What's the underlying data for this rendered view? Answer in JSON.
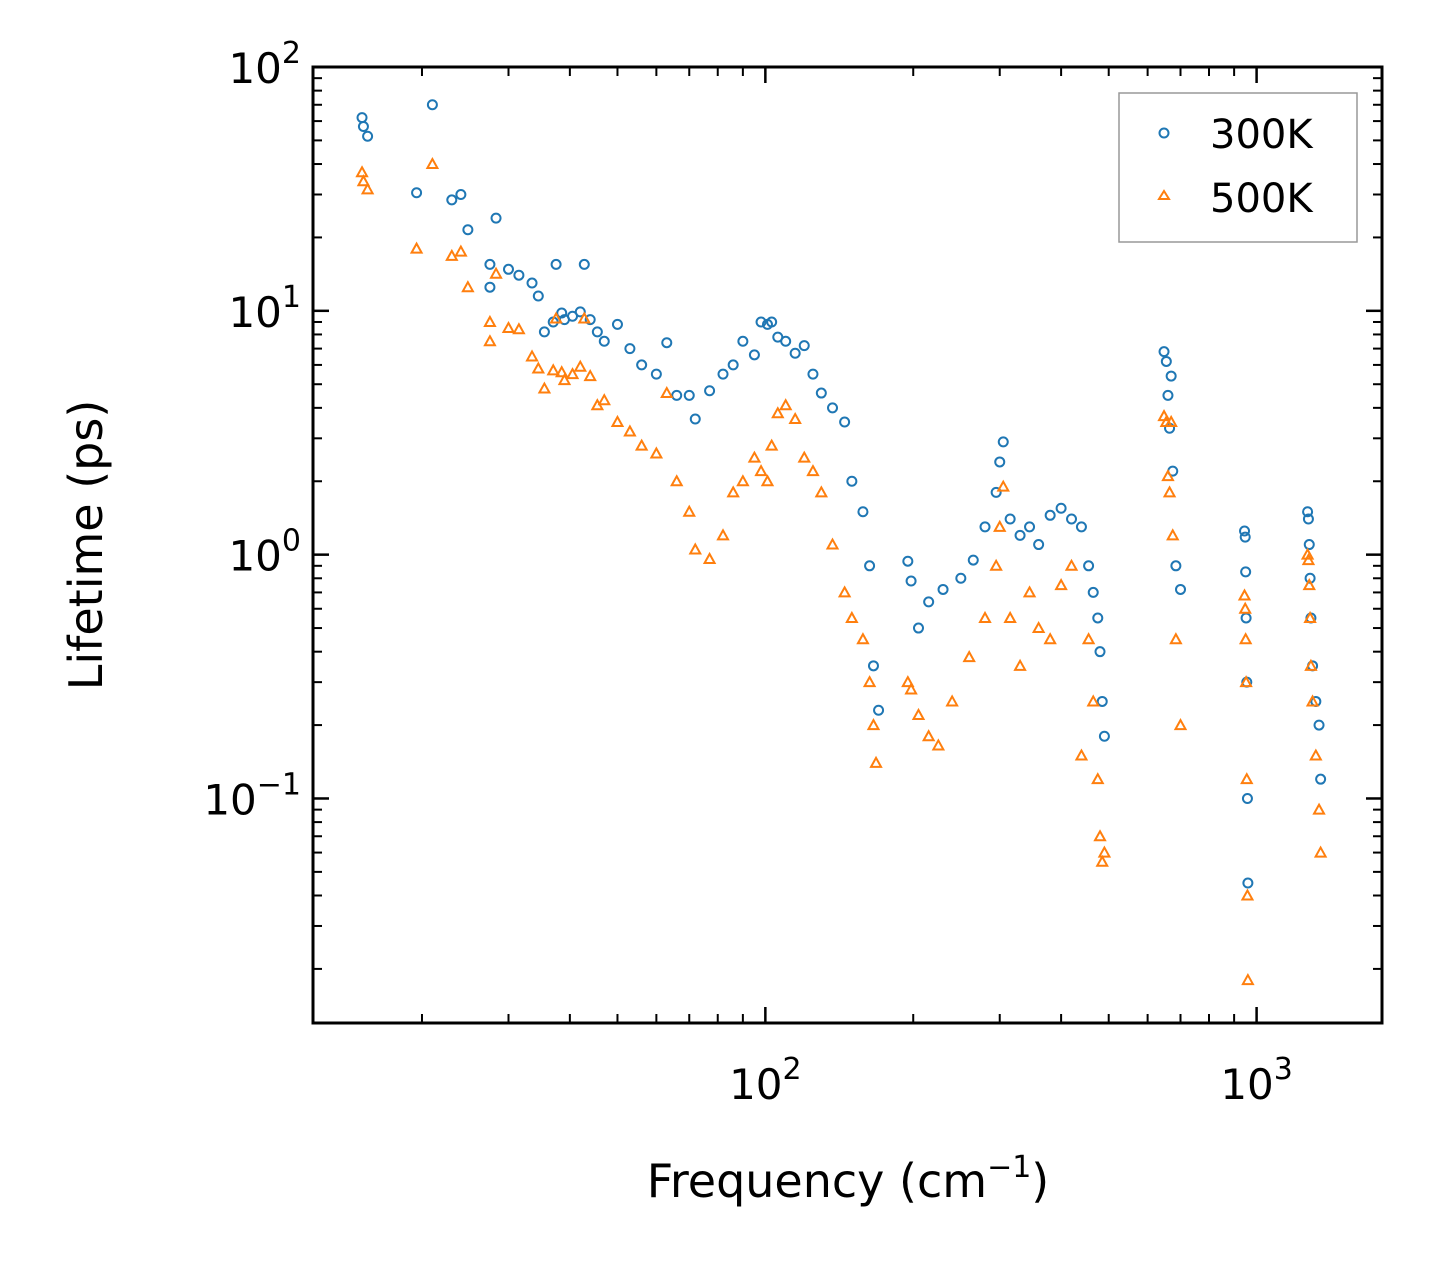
{
  "chart_data": {
    "type": "scatter",
    "xscale": "log",
    "yscale": "log",
    "xlim": [
      12,
      1800
    ],
    "ylim": [
      0.012,
      100
    ],
    "xlabel": "Frequency (cm",
    "xlabel_sup": "−1",
    "xlabel_end": ")",
    "ylabel": "Lifetime (ps)",
    "legend_position": "top-right",
    "x_ticks": [
      {
        "value": 100,
        "base": "10",
        "exp": "2"
      },
      {
        "value": 1000,
        "base": "10",
        "exp": "3"
      }
    ],
    "y_ticks": [
      {
        "value": 0.1,
        "base": "10",
        "exp": "−1"
      },
      {
        "value": 1,
        "base": "10",
        "exp": "0"
      },
      {
        "value": 10,
        "base": "10",
        "exp": "1"
      },
      {
        "value": 100,
        "base": "10",
        "exp": "2"
      }
    ],
    "series": [
      {
        "name": "300K",
        "marker": "circle",
        "color": "#1f77b4",
        "points": [
          [
            15.1,
            62
          ],
          [
            15.2,
            57
          ],
          [
            15.5,
            52
          ],
          [
            19.5,
            30.5
          ],
          [
            21,
            70
          ],
          [
            23,
            28.5
          ],
          [
            24,
            30
          ],
          [
            24.8,
            21.5
          ],
          [
            27.5,
            15.5
          ],
          [
            27.5,
            12.5
          ],
          [
            28.3,
            24
          ],
          [
            30,
            14.8
          ],
          [
            31.5,
            14
          ],
          [
            33.5,
            13
          ],
          [
            34.5,
            11.5
          ],
          [
            35.5,
            8.2
          ],
          [
            37,
            9
          ],
          [
            37.5,
            15.5
          ],
          [
            38.5,
            9.8
          ],
          [
            39,
            9.2
          ],
          [
            40.5,
            9.5
          ],
          [
            42,
            9.9
          ],
          [
            42.8,
            15.5
          ],
          [
            44,
            9.2
          ],
          [
            45.5,
            8.2
          ],
          [
            47,
            7.5
          ],
          [
            50,
            8.8
          ],
          [
            53,
            7
          ],
          [
            56,
            6
          ],
          [
            60,
            5.5
          ],
          [
            63,
            7.4
          ],
          [
            66,
            4.5
          ],
          [
            70,
            4.5
          ],
          [
            72,
            3.6
          ],
          [
            77,
            4.7
          ],
          [
            82,
            5.5
          ],
          [
            86,
            6
          ],
          [
            90,
            7.5
          ],
          [
            95,
            6.6
          ],
          [
            98,
            9
          ],
          [
            101,
            8.8
          ],
          [
            103,
            9
          ],
          [
            106,
            7.8
          ],
          [
            110,
            7.5
          ],
          [
            115,
            6.7
          ],
          [
            120,
            7.2
          ],
          [
            125,
            5.5
          ],
          [
            130,
            4.6
          ],
          [
            137,
            4
          ],
          [
            145,
            3.5
          ],
          [
            150,
            2
          ],
          [
            158,
            1.5
          ],
          [
            163,
            0.9
          ],
          [
            166,
            0.35
          ],
          [
            170,
            0.23
          ],
          [
            195,
            0.94
          ],
          [
            198,
            0.78
          ],
          [
            205,
            0.5
          ],
          [
            215,
            0.64
          ],
          [
            230,
            0.72
          ],
          [
            250,
            0.8
          ],
          [
            265,
            0.95
          ],
          [
            280,
            1.3
          ],
          [
            295,
            1.8
          ],
          [
            300,
            2.4
          ],
          [
            305,
            2.9
          ],
          [
            315,
            1.4
          ],
          [
            330,
            1.2
          ],
          [
            345,
            1.3
          ],
          [
            360,
            1.1
          ],
          [
            380,
            1.45
          ],
          [
            400,
            1.55
          ],
          [
            420,
            1.4
          ],
          [
            440,
            1.3
          ],
          [
            455,
            0.9
          ],
          [
            465,
            0.7
          ],
          [
            475,
            0.55
          ],
          [
            480,
            0.4
          ],
          [
            485,
            0.25
          ],
          [
            490,
            0.18
          ],
          [
            648,
            6.8
          ],
          [
            655,
            6.2
          ],
          [
            660,
            4.5
          ],
          [
            665,
            3.3
          ],
          [
            670,
            5.4
          ],
          [
            675,
            2.2
          ],
          [
            685,
            0.9
          ],
          [
            700,
            0.72
          ],
          [
            945,
            1.25
          ],
          [
            948,
            1.18
          ],
          [
            950,
            0.85
          ],
          [
            952,
            0.55
          ],
          [
            955,
            0.3
          ],
          [
            958,
            0.1
          ],
          [
            960,
            0.045
          ],
          [
            1270,
            1.5
          ],
          [
            1275,
            1.4
          ],
          [
            1280,
            1.1
          ],
          [
            1285,
            0.8
          ],
          [
            1290,
            0.55
          ],
          [
            1300,
            0.35
          ],
          [
            1320,
            0.25
          ],
          [
            1340,
            0.2
          ],
          [
            1350,
            0.12
          ]
        ]
      },
      {
        "name": "500K",
        "marker": "triangle",
        "color": "#ff7f0e",
        "points": [
          [
            15.1,
            37
          ],
          [
            15.2,
            34
          ],
          [
            15.5,
            31.5
          ],
          [
            19.5,
            18
          ],
          [
            21,
            40
          ],
          [
            23,
            16.8
          ],
          [
            24,
            17.5
          ],
          [
            24.8,
            12.5
          ],
          [
            27.5,
            9
          ],
          [
            27.5,
            7.5
          ],
          [
            28.3,
            14.2
          ],
          [
            30,
            8.5
          ],
          [
            31.5,
            8.4
          ],
          [
            33.5,
            6.5
          ],
          [
            34.5,
            5.8
          ],
          [
            35.5,
            4.8
          ],
          [
            37,
            5.7
          ],
          [
            37.5,
            9.3
          ],
          [
            38.5,
            5.6
          ],
          [
            39,
            5.2
          ],
          [
            40.5,
            5.5
          ],
          [
            42,
            5.9
          ],
          [
            42.8,
            9.3
          ],
          [
            44,
            5.4
          ],
          [
            45.5,
            4.1
          ],
          [
            47,
            4.3
          ],
          [
            50,
            3.5
          ],
          [
            53,
            3.2
          ],
          [
            56,
            2.8
          ],
          [
            60,
            2.6
          ],
          [
            63,
            4.6
          ],
          [
            66,
            2
          ],
          [
            70,
            1.5
          ],
          [
            72,
            1.05
          ],
          [
            77,
            0.96
          ],
          [
            82,
            1.2
          ],
          [
            86,
            1.8
          ],
          [
            90,
            2
          ],
          [
            95,
            2.5
          ],
          [
            98,
            2.2
          ],
          [
            101,
            2
          ],
          [
            103,
            2.8
          ],
          [
            106,
            3.8
          ],
          [
            110,
            4.1
          ],
          [
            115,
            3.6
          ],
          [
            120,
            2.5
          ],
          [
            125,
            2.2
          ],
          [
            130,
            1.8
          ],
          [
            137,
            1.1
          ],
          [
            145,
            0.7
          ],
          [
            150,
            0.55
          ],
          [
            158,
            0.45
          ],
          [
            163,
            0.3
          ],
          [
            166,
            0.2
          ],
          [
            168,
            0.14
          ],
          [
            195,
            0.3
          ],
          [
            198,
            0.28
          ],
          [
            205,
            0.22
          ],
          [
            215,
            0.18
          ],
          [
            225,
            0.165
          ],
          [
            240,
            0.25
          ],
          [
            260,
            0.38
          ],
          [
            280,
            0.55
          ],
          [
            295,
            0.9
          ],
          [
            300,
            1.3
          ],
          [
            305,
            1.9
          ],
          [
            315,
            0.55
          ],
          [
            330,
            0.35
          ],
          [
            345,
            0.7
          ],
          [
            360,
            0.5
          ],
          [
            380,
            0.45
          ],
          [
            400,
            0.75
          ],
          [
            420,
            0.9
          ],
          [
            440,
            0.15
          ],
          [
            455,
            0.45
          ],
          [
            465,
            0.25
          ],
          [
            475,
            0.12
          ],
          [
            480,
            0.07
          ],
          [
            485,
            0.055
          ],
          [
            490,
            0.06
          ],
          [
            648,
            3.7
          ],
          [
            655,
            3.5
          ],
          [
            660,
            2.1
          ],
          [
            665,
            1.8
          ],
          [
            670,
            3.5
          ],
          [
            675,
            1.2
          ],
          [
            685,
            0.45
          ],
          [
            700,
            0.2
          ],
          [
            945,
            0.68
          ],
          [
            948,
            0.6
          ],
          [
            950,
            0.45
          ],
          [
            952,
            0.3
          ],
          [
            955,
            0.12
          ],
          [
            958,
            0.04
          ],
          [
            960,
            0.018
          ],
          [
            1270,
            1
          ],
          [
            1275,
            0.95
          ],
          [
            1280,
            0.75
          ],
          [
            1285,
            0.55
          ],
          [
            1290,
            0.35
          ],
          [
            1300,
            0.25
          ],
          [
            1320,
            0.15
          ],
          [
            1340,
            0.09
          ],
          [
            1350,
            0.06
          ]
        ]
      }
    ]
  }
}
